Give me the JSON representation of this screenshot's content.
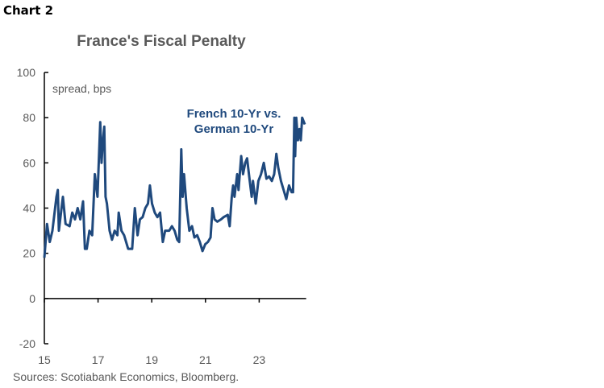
{
  "chart_label": "Chart 2",
  "chart_data": {
    "type": "line",
    "title": "France's Fiscal Penalty",
    "ylabel": "spread, bps",
    "xlabel": "",
    "ylim": [
      -20,
      100
    ],
    "yticks": [
      -20,
      0,
      20,
      40,
      60,
      80,
      100
    ],
    "xlim": [
      2015,
      2024.75
    ],
    "xticks": [
      2015,
      2017,
      2019,
      2021,
      2023
    ],
    "xtick_labels": [
      "15",
      "17",
      "19",
      "21",
      "23"
    ],
    "grid": false,
    "series": [
      {
        "name": "French 10-Yr vs. German 10-Yr",
        "color": "#1f497d",
        "x": [
          2015.0,
          2015.1,
          2015.2,
          2015.3,
          2015.45,
          2015.5,
          2015.54,
          2015.69,
          2015.79,
          2015.94,
          2016.04,
          2016.14,
          2016.24,
          2016.34,
          2016.44,
          2016.51,
          2016.58,
          2016.68,
          2016.78,
          2016.88,
          2016.98,
          2017.08,
          2017.13,
          2017.18,
          2017.23,
          2017.28,
          2017.33,
          2017.43,
          2017.52,
          2017.62,
          2017.72,
          2017.77,
          2017.87,
          2017.97,
          2018.12,
          2018.27,
          2018.37,
          2018.47,
          2018.56,
          2018.66,
          2018.76,
          2018.86,
          2018.93,
          2019.01,
          2019.11,
          2019.21,
          2019.31,
          2019.41,
          2019.5,
          2019.65,
          2019.75,
          2019.85,
          2019.95,
          2020.02,
          2020.1,
          2020.15,
          2020.2,
          2020.3,
          2020.4,
          2020.5,
          2020.59,
          2020.69,
          2020.79,
          2020.89,
          2020.99,
          2021.09,
          2021.19,
          2021.26,
          2021.34,
          2021.44,
          2021.58,
          2021.68,
          2021.83,
          2021.9,
          2021.98,
          2022.03,
          2022.08,
          2022.18,
          2022.23,
          2022.33,
          2022.4,
          2022.48,
          2022.55,
          2022.62,
          2022.72,
          2022.77,
          2022.87,
          2022.97,
          2023.07,
          2023.17,
          2023.27,
          2023.37,
          2023.47,
          2023.56,
          2023.64,
          2023.71,
          2023.81,
          2023.91,
          2024.01,
          2024.11,
          2024.21,
          2024.26,
          2024.31,
          2024.34,
          2024.38,
          2024.44,
          2024.5,
          2024.55,
          2024.6,
          2024.7
        ],
        "y": [
          18,
          33,
          25,
          30,
          45,
          48,
          30,
          45,
          33,
          32,
          38,
          35,
          40,
          35,
          43,
          22,
          22,
          30,
          28,
          55,
          45,
          78,
          60,
          70,
          76,
          45,
          42,
          30,
          26,
          30,
          28,
          38,
          30,
          28,
          22,
          22,
          40,
          28,
          35,
          36,
          40,
          42,
          50,
          42,
          38,
          36,
          38,
          25,
          30,
          30,
          32,
          30,
          26,
          25,
          66,
          45,
          55,
          40,
          30,
          32,
          27,
          28,
          25,
          21,
          24,
          25,
          27,
          40,
          35,
          34,
          35,
          36,
          37,
          32,
          45,
          50,
          45,
          55,
          48,
          63,
          55,
          60,
          62,
          55,
          45,
          52,
          42,
          52,
          55,
          60,
          53,
          54,
          52,
          55,
          64,
          58,
          52,
          48,
          44,
          50,
          47,
          47,
          80,
          63,
          80,
          70,
          75,
          70,
          80,
          77
        ]
      }
    ],
    "annotation": [
      "French 10-Yr vs.",
      "German 10-Yr"
    ],
    "source": "Sources: Scotiabank Economics, Bloomberg."
  }
}
